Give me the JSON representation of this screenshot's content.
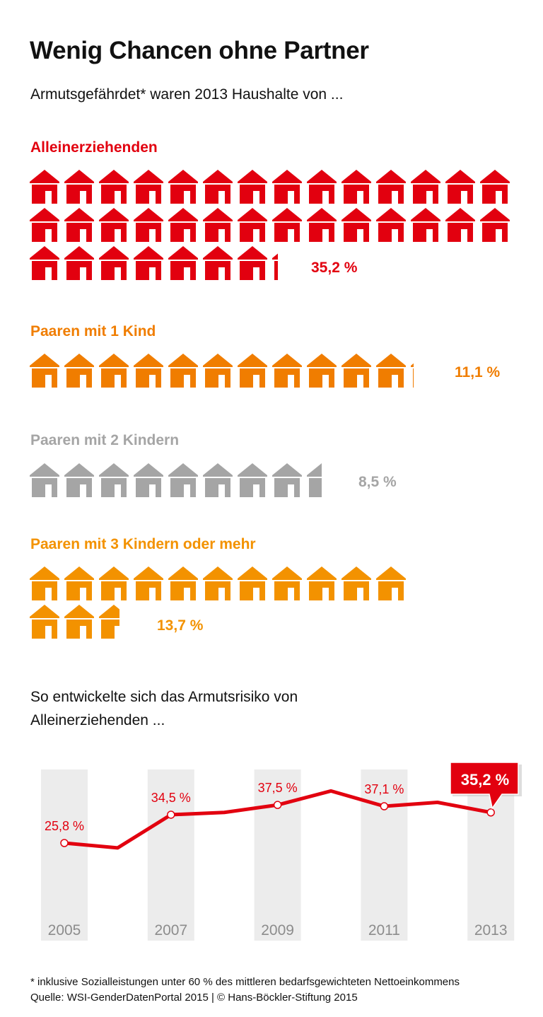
{
  "title": "Wenig Chancen ohne Partner",
  "subtitle": "Armutsgefährdet* waren 2013 Haushalte von  ...",
  "colors": {
    "red": "#e2000f",
    "orange": "#f07d00",
    "grey": "#a5a5a5",
    "light_orange": "#f39200",
    "band": "#ececec",
    "year_text": "#8c8c8c"
  },
  "groups": [
    {
      "label": "Alleinerziehenden",
      "value": 35.2,
      "value_label": "35,2 %",
      "color": "#e2000f",
      "icon": "house-icon"
    },
    {
      "label": "Paaren mit 1 Kind",
      "value": 11.1,
      "value_label": "11,1 %",
      "color": "#f07d00",
      "icon": "house-icon"
    },
    {
      "label": "Paaren mit 2 Kindern",
      "value": 8.5,
      "value_label": "8,5 %",
      "color": "#a5a5a5",
      "icon": "house-icon"
    },
    {
      "label": "Paaren mit 3 Kindern oder mehr",
      "value": 13.7,
      "value_label": "13,7 %",
      "color": "#f39200",
      "icon": "house-icon"
    }
  ],
  "chart_heading": [
    "So entwickelte sich das Armutsrisiko von",
    "Alleinerziehenden ..."
  ],
  "chart_data": {
    "type": "line",
    "x": [
      2005,
      2006,
      2007,
      2008,
      2009,
      2010,
      2011,
      2012,
      2013
    ],
    "values": [
      25.8,
      24.3,
      34.5,
      35.2,
      37.5,
      41.8,
      37.1,
      38.3,
      35.2
    ],
    "tick_labels": [
      "2005",
      "2007",
      "2009",
      "2011",
      "2013"
    ],
    "data_labels": [
      {
        "x": 2005,
        "text": "25,8 %"
      },
      {
        "x": 2007,
        "text": "34,5 %"
      },
      {
        "x": 2009,
        "text": "37,5 %"
      },
      {
        "x": 2011,
        "text": "37,1 %"
      },
      {
        "x": 2013,
        "text": "35,2 %",
        "highlight": true
      }
    ],
    "line_color": "#e2000f",
    "grid": false,
    "ylim": [
      0,
      45
    ]
  },
  "footer": {
    "note": "* inklusive Sozialleistungen unter 60 % des mittleren bedarfsgewichteten Nettoeinkommens",
    "source": "Quelle: WSI-GenderDatenPortal 2015 | © Hans-Böckler-Stiftung 2015"
  }
}
